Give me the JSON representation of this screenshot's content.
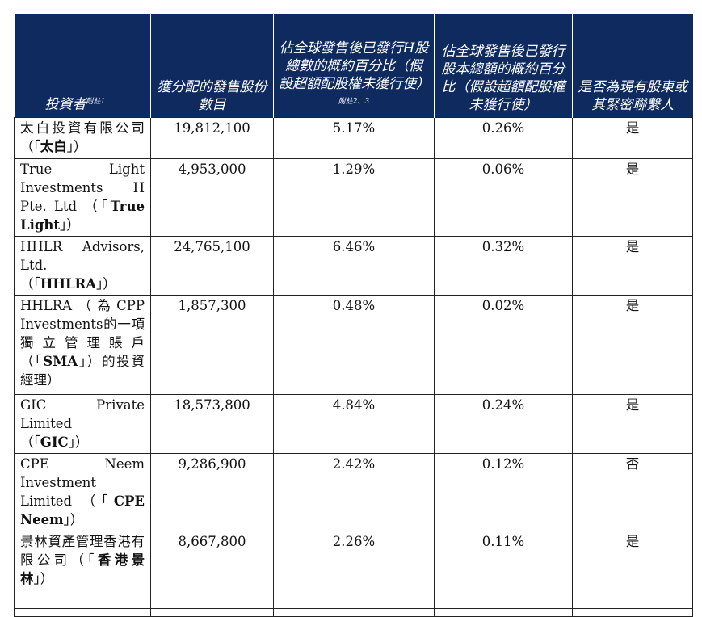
{
  "header": {
    "investor": "投資者",
    "investor_note": "附註1",
    "shares": "獲分配的發售股份數目",
    "pct_h": "佔全球發售後已發行H股總數的概約百分比（假設超額配股權未獲行使）",
    "pct_h_note": "附註2、3",
    "pct_total": "佔全球發售後已發行股本總額的概約百分比（假設超額配股權未獲行使）",
    "related": "是否為現有股東或其緊密聯繫人"
  },
  "rows": [
    {
      "name_pre": "太白投資有限公司（「",
      "name_bold": "太白",
      "name_post": "」）",
      "shares": "19,812,100",
      "pct_h": "5.17%",
      "pct_total": "0.26%",
      "related": "是"
    },
    {
      "name_pre": "True Light Investments H Pte. Ltd （「",
      "name_bold": "True Light",
      "name_post": "」）",
      "shares": "4,953,000",
      "pct_h": "1.29%",
      "pct_total": "0.06%",
      "related": "是"
    },
    {
      "name_pre": "HHLR Advisors, Ltd.\n（「",
      "name_bold": "HHLRA",
      "name_post": "」）",
      "shares": "24,765,100",
      "pct_h": "6.46%",
      "pct_total": "0.32%",
      "related": "是"
    },
    {
      "name_pre": "HHLRA（為CPP Investments的一項獨立管理賬戶（「",
      "name_bold": "SMA",
      "name_post": "」）的投資經理）",
      "shares": "1,857,300",
      "pct_h": "0.48%",
      "pct_total": "0.02%",
      "related": "是"
    },
    {
      "name_pre": "GIC Private Limited\n（「",
      "name_bold": "GIC",
      "name_post": "」）",
      "shares": "18,573,800",
      "pct_h": "4.84%",
      "pct_total": "0.24%",
      "related": "是"
    },
    {
      "name_pre": "CPE Neem Investment Limited （「",
      "name_bold": "CPE Neem",
      "name_post": "」）",
      "shares": "9,286,900",
      "pct_h": "2.42%",
      "pct_total": "0.12%",
      "related": "否"
    },
    {
      "name_pre": "景林資產管理香港有限公司（「",
      "name_bold": "香港景林",
      "name_post": "」）",
      "shares": "8,667,800",
      "pct_h": "2.26%",
      "pct_total": "0.11%",
      "related": "是"
    }
  ]
}
